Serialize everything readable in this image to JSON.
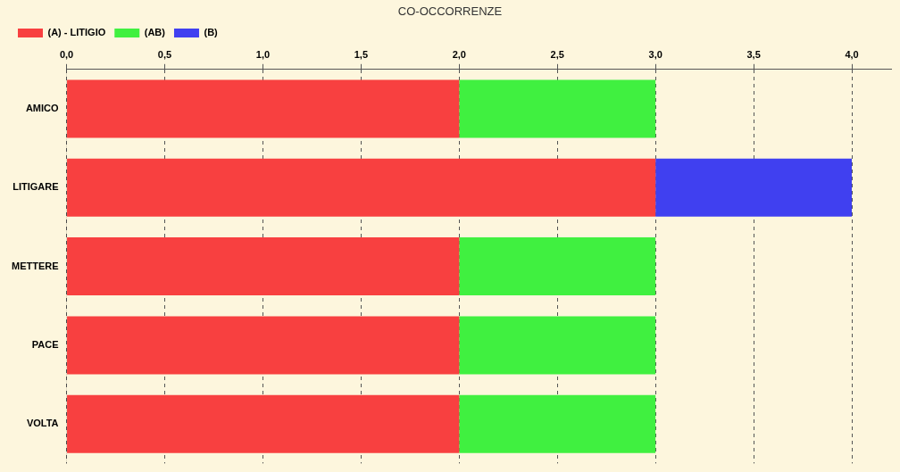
{
  "chart_data": {
    "type": "bar",
    "title": "CO-OCCORRENZE",
    "orientation": "horizontal",
    "stacked": true,
    "categories": [
      "AMICO",
      "LITIGARE",
      "METTERE",
      "PACE",
      "VOLTA"
    ],
    "series": [
      {
        "name": "(A) - LITIGIO",
        "color": "#f84040",
        "values": [
          2,
          3,
          2,
          2,
          2
        ]
      },
      {
        "name": "(AB)",
        "color": "#40f040",
        "values": [
          1,
          0,
          1,
          1,
          1
        ]
      },
      {
        "name": "(B)",
        "color": "#4040f0",
        "values": [
          0,
          1,
          0,
          0,
          0
        ]
      }
    ],
    "xlim": [
      0,
      4.2
    ],
    "xticks": [
      {
        "value": 0,
        "label": "0,0"
      },
      {
        "value": 0.5,
        "label": "0,5"
      },
      {
        "value": 1,
        "label": "1,0"
      },
      {
        "value": 1.5,
        "label": "1,5"
      },
      {
        "value": 2,
        "label": "2,0"
      },
      {
        "value": 2.5,
        "label": "2,5"
      },
      {
        "value": 3,
        "label": "3,0"
      },
      {
        "value": 3.5,
        "label": "3,5"
      },
      {
        "value": 4,
        "label": "4,0"
      }
    ],
    "grid": "x",
    "legend": "top left"
  }
}
